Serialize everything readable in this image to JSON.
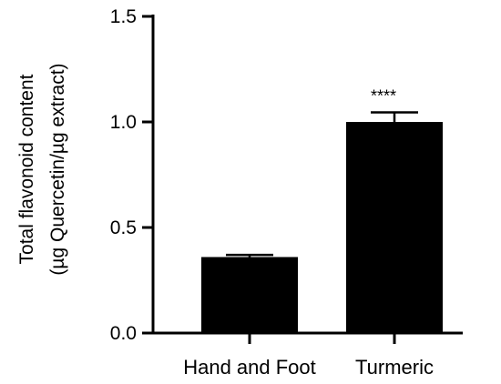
{
  "chart_data": {
    "type": "bar",
    "categories": [
      "Hand and Foot",
      "Turmeric"
    ],
    "values": [
      0.36,
      1.0
    ],
    "errors": [
      0.01,
      0.045
    ],
    "annotations": [
      "",
      "****"
    ],
    "ylabel_line1": "Total flavonoid content",
    "ylabel_line2": "(µg Quercetin/µg extract)",
    "ylim": [
      0,
      1.5
    ],
    "yticks": [
      "0.0",
      "0.5",
      "1.0",
      "1.5"
    ],
    "ytick_values": [
      0,
      0.5,
      1.0,
      1.5
    ],
    "bar_color": "#000000",
    "grid": false
  }
}
